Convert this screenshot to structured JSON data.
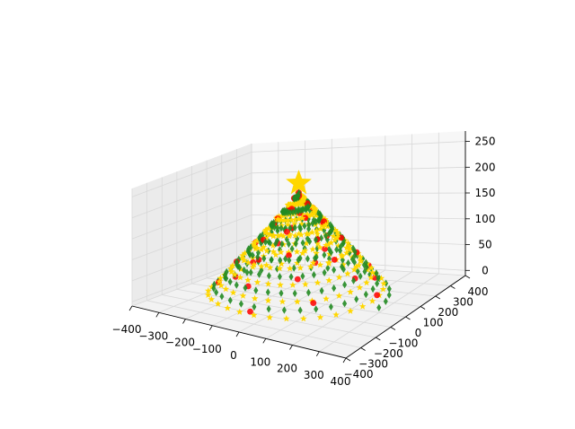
{
  "chart_data": {
    "type": "scatter",
    "projection": "3d",
    "title": "",
    "xlabel": "",
    "ylabel": "",
    "zlabel": "",
    "grid": true,
    "xlim": [
      -400,
      400
    ],
    "ylim": [
      -400,
      400
    ],
    "zlim": [
      -10,
      270
    ],
    "x_ticks": [
      "−400",
      "−300",
      "−200",
      "−100",
      "0",
      "100",
      "200",
      "300",
      "400"
    ],
    "y_ticks": [
      "−400",
      "−300",
      "−200",
      "−100",
      "0",
      "100",
      "200",
      "300",
      "400"
    ],
    "z_ticks": [
      "0",
      "50",
      "100",
      "150",
      "200",
      "250"
    ],
    "x_tick_values": [
      -400,
      -300,
      -200,
      -100,
      0,
      100,
      200,
      300,
      400
    ],
    "y_tick_values": [
      -400,
      -300,
      -200,
      -100,
      0,
      100,
      200,
      300,
      400
    ],
    "z_tick_values": [
      0,
      50,
      100,
      150,
      200,
      250
    ],
    "tree": {
      "base_radius": 300,
      "top_z": 220,
      "turns": 8,
      "points": 260
    },
    "series": [
      {
        "marker": "diamond",
        "color": "#228b22",
        "phase": 0
      },
      {
        "marker": "star",
        "color": "#ffd700",
        "phase": 180
      },
      {
        "marker": "circle",
        "color": "#ff0000",
        "count": 40
      }
    ],
    "topper": {
      "marker": "star",
      "color": "#ffd700",
      "z": 240
    }
  }
}
